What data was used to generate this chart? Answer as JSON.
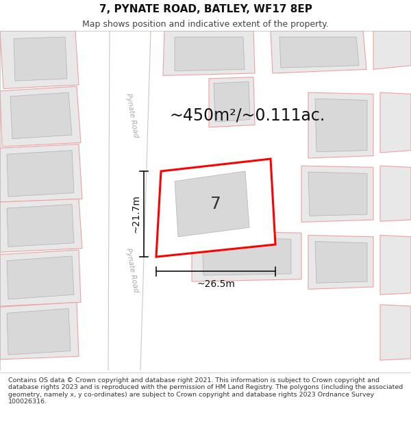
{
  "title": "7, PYNATE ROAD, BATLEY, WF17 8EP",
  "subtitle": "Map shows position and indicative extent of the property.",
  "footer": "Contains OS data © Crown copyright and database right 2021. This information is subject to Crown copyright and database rights 2023 and is reproduced with the permission of HM Land Registry. The polygons (including the associated geometry, namely x, y co-ordinates) are subject to Crown copyright and database rights 2023 Ordnance Survey 100026316.",
  "area_text": "~450m²/~0.111ac.",
  "label_number": "7",
  "dim_width": "~26.5m",
  "dim_height": "~21.7m",
  "road_label_top": "Pynate Road",
  "road_label_bottom": "Pynate Road",
  "bg_color": "#ffffff",
  "map_bg": "#ffffff",
  "highlight_stroke": "#ff0000",
  "neighbor_stroke": "#f0a0a0",
  "neighbor_fill": "#e8e8e8",
  "inner_fill": "#d8d8d8",
  "road_fill": "#ffffff",
  "road_edge": "#cccccc",
  "title_fontsize": 11,
  "subtitle_fontsize": 9,
  "footer_fontsize": 6.8,
  "area_fontsize": 17,
  "label_fontsize": 18,
  "dim_fontsize": 10
}
